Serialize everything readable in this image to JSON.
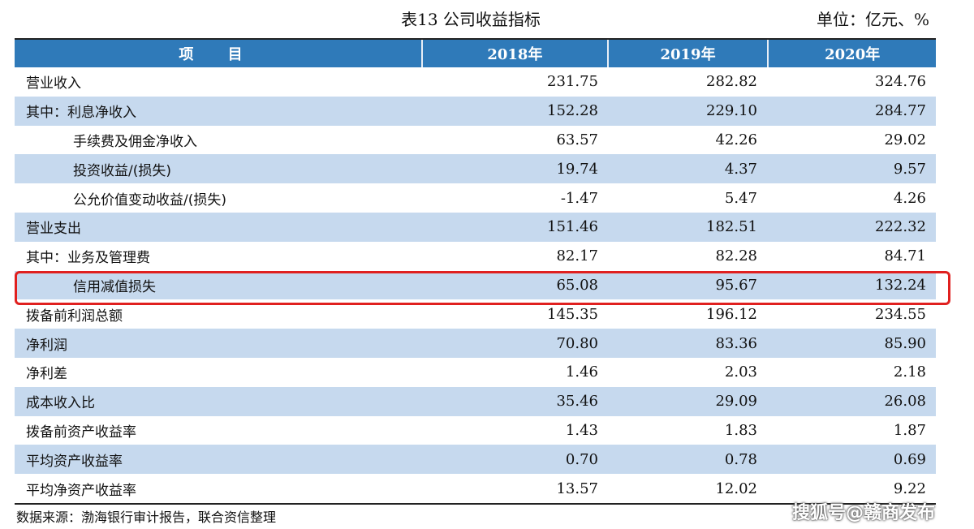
{
  "caption": {
    "title": "表13  公司收益指标",
    "unit": "单位：亿元、%"
  },
  "table": {
    "headers": [
      "项 目",
      "2018年",
      "2019年",
      "2020年"
    ],
    "rows": [
      {
        "label": "营业收入",
        "v2018": "231.75",
        "v2019": "282.82",
        "v2020": "324.76"
      },
      {
        "label": "其中：利息净收入",
        "v2018": "152.28",
        "v2019": "229.10",
        "v2020": "284.77"
      },
      {
        "label": "手续费及佣金净收入",
        "v2018": "63.57",
        "v2019": "42.26",
        "v2020": "29.02"
      },
      {
        "label": "投资收益/(损失)",
        "v2018": "19.74",
        "v2019": "4.37",
        "v2020": "9.57"
      },
      {
        "label": "公允价值变动收益/(损失)",
        "v2018": "-1.47",
        "v2019": "5.47",
        "v2020": "4.26"
      },
      {
        "label": "营业支出",
        "v2018": "151.46",
        "v2019": "182.51",
        "v2020": "222.32"
      },
      {
        "label": "其中：业务及管理费",
        "v2018": "82.17",
        "v2019": "82.28",
        "v2020": "84.71"
      },
      {
        "label": "信用减值损失",
        "v2018": "65.08",
        "v2019": "95.67",
        "v2020": "132.24"
      },
      {
        "label": "拨备前利润总额",
        "v2018": "145.35",
        "v2019": "196.12",
        "v2020": "234.55"
      },
      {
        "label": "净利润",
        "v2018": "70.80",
        "v2019": "83.36",
        "v2020": "85.90"
      },
      {
        "label": "净利差",
        "v2018": "1.46",
        "v2019": "2.03",
        "v2020": "2.18"
      },
      {
        "label": "成本收入比",
        "v2018": "35.46",
        "v2019": "29.09",
        "v2020": "26.08"
      },
      {
        "label": "拨备前资产收益率",
        "v2018": "1.43",
        "v2019": "1.83",
        "v2020": "1.87"
      },
      {
        "label": "平均资产收益率",
        "v2018": "0.70",
        "v2019": "0.78",
        "v2020": "0.69"
      },
      {
        "label": "平均净资产收益率",
        "v2018": "13.57",
        "v2019": "12.02",
        "v2020": "9.22"
      }
    ]
  },
  "source": "数据来源：渤海银行审计报告，联合资信整理",
  "watermark": "搜狐号@赣商发布",
  "colors": {
    "header_bg": "#2f7ab9",
    "shade": "#c6d9ee",
    "highlight": "#e0201f"
  }
}
